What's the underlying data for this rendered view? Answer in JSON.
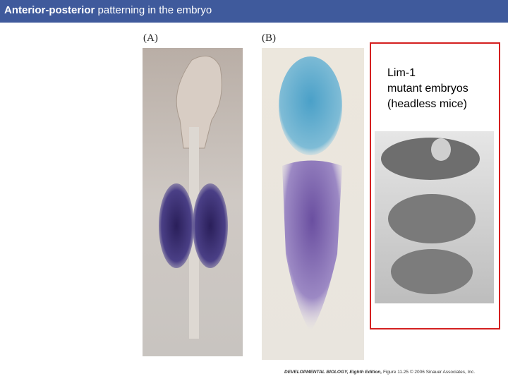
{
  "header": {
    "title_bold": "Anterior-posterior",
    "title_rest": " patterning in the embryo"
  },
  "panels": [
    {
      "label": "(A)"
    },
    {
      "label": "(B)"
    }
  ],
  "annotation": {
    "lines": [
      "Lim-1",
      "mutant embryos",
      "(headless mice)"
    ]
  },
  "footer": {
    "source": "DEVELOPMENTAL BIOLOGY, Eighth Edition,",
    "rest": " Figure 11.25 © 2006 Sinauer Associates, Inc."
  }
}
